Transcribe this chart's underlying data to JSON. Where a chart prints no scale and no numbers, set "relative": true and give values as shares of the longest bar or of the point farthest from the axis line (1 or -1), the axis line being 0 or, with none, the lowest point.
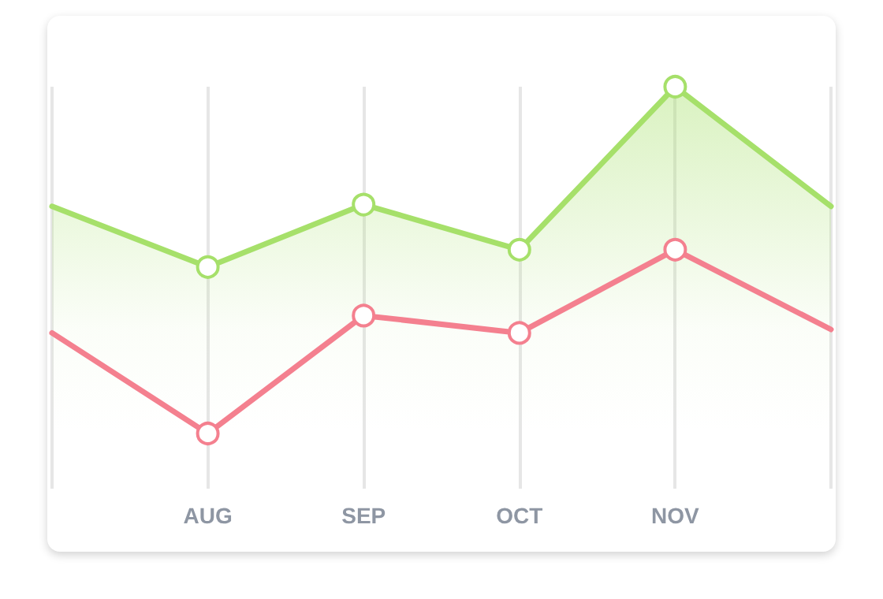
{
  "chart_data": {
    "type": "line",
    "relative": true,
    "categories": [
      null,
      "AUG",
      "SEP",
      "OCT",
      "NOV",
      null
    ],
    "grid": "x",
    "marker": "circle",
    "line_style": "solid",
    "series": [
      {
        "type": "area",
        "color": "#a6e06a",
        "values": [
          0.655,
          0.48,
          0.66,
          0.53,
          1,
          0.655
        ]
      },
      {
        "type": "line",
        "color": "#f4808f",
        "values": [
          0.29,
          0,
          0.34,
          0.29,
          0.53,
          0.3
        ]
      }
    ]
  }
}
